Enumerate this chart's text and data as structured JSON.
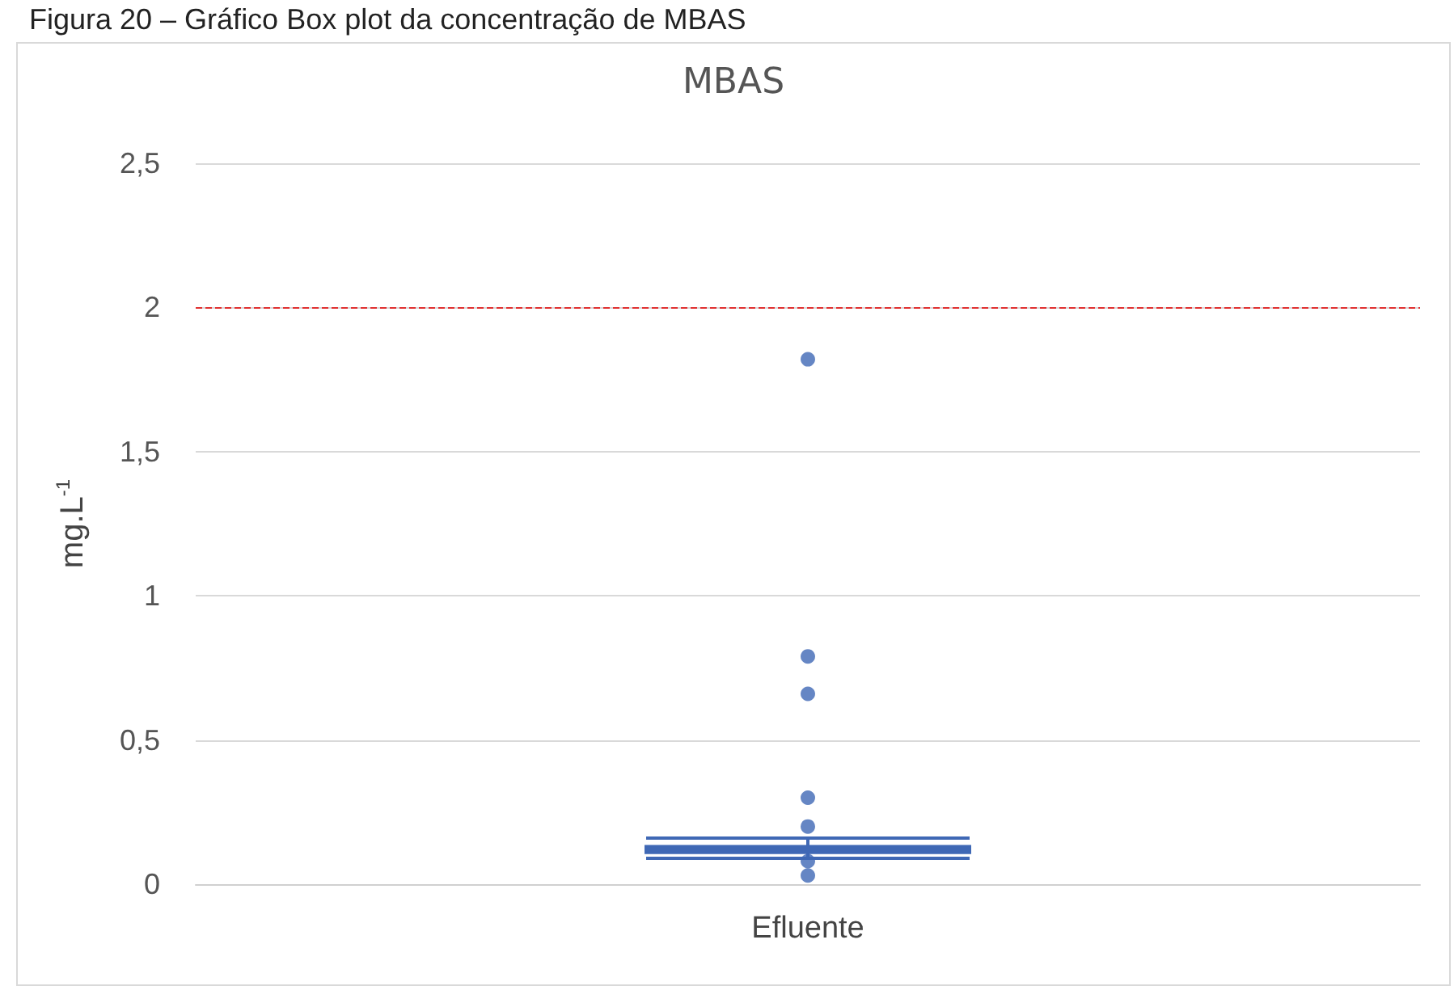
{
  "chart_data": {
    "type": "box",
    "title": "MBAS",
    "ylabel": "mg.L$^{-1}$",
    "annotations": [
      "Figura 20 – Gráfico Box plot da concentração de MBAS"
    ],
    "categories": [
      "Efluente"
    ],
    "series": [
      {
        "color": "#3f68b5",
        "boxes": [
          {
            "low": 0.09,
            "q1": 0.11,
            "median": 0.12,
            "q3": 0.13,
            "high": 0.16,
            "outliers": [
              0.03,
              0.08,
              0.2,
              0.3,
              0.66,
              0.79,
              1.82
            ]
          }
        ]
      }
    ],
    "ylim": [
      0,
      2.5
    ],
    "yticks": [
      0,
      {
        "value": 0.5,
        "label": "0,5"
      },
      1,
      {
        "value": 1.5,
        "label": "1,5"
      },
      2,
      {
        "value": 2.5,
        "label": "2,5"
      }
    ],
    "grid": "y",
    "marker": "circle",
    "ref_lines": [
      {
        "axis": "y",
        "value": 2,
        "color": "#e03030",
        "line_style": "dashed"
      }
    ]
  }
}
